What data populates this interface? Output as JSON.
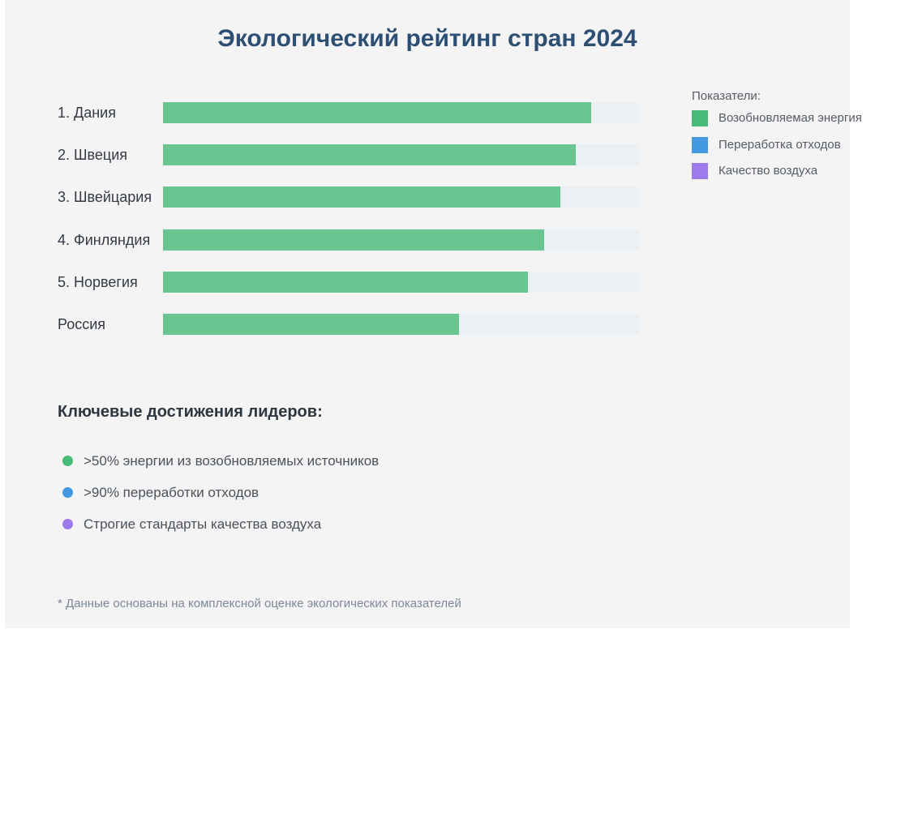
{
  "chart_data": {
    "type": "bar",
    "orientation": "horizontal",
    "title": "Экологический рейтинг стран 2024",
    "categories": [
      "1. Дания",
      "2. Швеция",
      "3. Швейцария",
      "4. Финляндия",
      "5. Норвегия",
      "Россия"
    ],
    "series": [
      {
        "name": "Возобновляемая энергия",
        "color": "#6bc590",
        "values": [
          90,
          86.7,
          83.4,
          80,
          76.6,
          62.2
        ]
      }
    ],
    "xlim": [
      0,
      100
    ],
    "track_color": "#ebf0f4",
    "grid": false,
    "legend_position": "right",
    "legend": {
      "title": "Показатели:",
      "items": [
        {
          "label": "Возобновляемая энергия",
          "color": "#48bb78"
        },
        {
          "label": "Переработка отходов",
          "color": "#4299e1"
        },
        {
          "label": "Качество воздуха",
          "color": "#9f7aea"
        }
      ]
    }
  },
  "achievements": {
    "title": "Ключевые достижения лидеров:",
    "items": [
      {
        "text": ">50% энергии из возобновляемых источников",
        "color": "#48bb78"
      },
      {
        "text": ">90% переработки отходов",
        "color": "#4299e1"
      },
      {
        "text": "Строгие стандарты качества воздуха",
        "color": "#9f7aea"
      }
    ]
  },
  "footnote": "* Данные основаны на комплексной оценке экологических показателей"
}
